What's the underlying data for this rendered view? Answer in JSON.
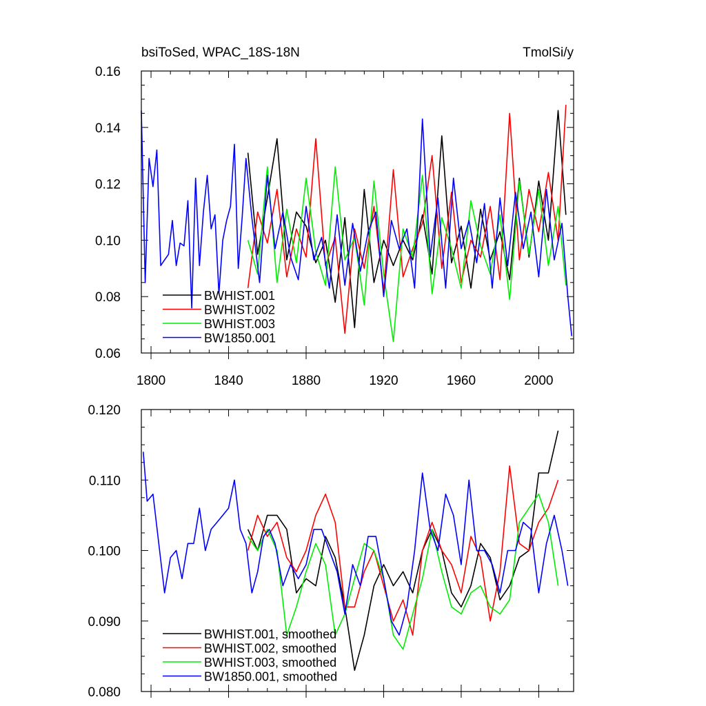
{
  "chart_data": [
    {
      "type": "line",
      "title": "bsiToSed, WPAC_18S-18N",
      "units_label": "TmolSi/y",
      "xlim": [
        1795,
        2018
      ],
      "ylim": [
        0.06,
        0.16
      ],
      "yticks": [
        "0.06",
        "0.08",
        "0.10",
        "0.12",
        "0.14",
        "0.16"
      ],
      "xticks": [
        "1800",
        "1840",
        "1880",
        "1920",
        "1960",
        "2000"
      ],
      "legend_position": "bottom-left",
      "series": [
        {
          "name": "BWHIST.001",
          "color": "#000000",
          "x": [
            1850,
            1855,
            1860,
            1865,
            1870,
            1875,
            1880,
            1885,
            1890,
            1895,
            1900,
            1905,
            1910,
            1915,
            1920,
            1925,
            1930,
            1935,
            1940,
            1945,
            1950,
            1955,
            1960,
            1965,
            1970,
            1975,
            1980,
            1985,
            1990,
            1995,
            2000,
            2005,
            2010,
            2014
          ],
          "values": [
            0.131,
            0.095,
            0.115,
            0.136,
            0.093,
            0.11,
            0.105,
            0.092,
            0.1,
            0.078,
            0.108,
            0.069,
            0.118,
            0.085,
            0.1,
            0.091,
            0.1,
            0.093,
            0.109,
            0.088,
            0.137,
            0.092,
            0.105,
            0.083,
            0.111,
            0.093,
            0.103,
            0.086,
            0.122,
            0.094,
            0.121,
            0.1,
            0.146,
            0.109
          ]
        },
        {
          "name": "BWHIST.002",
          "color": "#ff0000",
          "x": [
            1850,
            1855,
            1860,
            1865,
            1870,
            1875,
            1880,
            1885,
            1890,
            1895,
            1900,
            1905,
            1910,
            1915,
            1920,
            1925,
            1930,
            1935,
            1940,
            1945,
            1950,
            1955,
            1960,
            1965,
            1970,
            1975,
            1980,
            1985,
            1990,
            1995,
            2000,
            2005,
            2010,
            2014
          ],
          "values": [
            0.083,
            0.11,
            0.099,
            0.118,
            0.087,
            0.104,
            0.094,
            0.136,
            0.091,
            0.101,
            0.067,
            0.104,
            0.09,
            0.112,
            0.082,
            0.125,
            0.087,
            0.097,
            0.106,
            0.13,
            0.09,
            0.117,
            0.085,
            0.1,
            0.094,
            0.112,
            0.086,
            0.145,
            0.093,
            0.118,
            0.103,
            0.124,
            0.1,
            0.148
          ]
        },
        {
          "name": "BWHIST.003",
          "color": "#00ee00",
          "x": [
            1850,
            1855,
            1860,
            1865,
            1870,
            1875,
            1880,
            1885,
            1890,
            1895,
            1900,
            1905,
            1910,
            1915,
            1920,
            1925,
            1930,
            1935,
            1940,
            1945,
            1950,
            1955,
            1960,
            1965,
            1970,
            1975,
            1980,
            1985,
            1990,
            1995,
            2000,
            2005,
            2010,
            2014
          ],
          "values": [
            0.1,
            0.088,
            0.126,
            0.085,
            0.111,
            0.092,
            0.122,
            0.096,
            0.084,
            0.126,
            0.093,
            0.101,
            0.077,
            0.121,
            0.088,
            0.064,
            0.104,
            0.094,
            0.123,
            0.081,
            0.108,
            0.097,
            0.083,
            0.114,
            0.098,
            0.088,
            0.109,
            0.079,
            0.121,
            0.095,
            0.118,
            0.091,
            0.112,
            0.084
          ]
        },
        {
          "name": "BW1850.001",
          "color": "#0000ff",
          "x": [
            1795,
            1797,
            1799,
            1801,
            1803,
            1805,
            1807,
            1809,
            1811,
            1813,
            1815,
            1817,
            1819,
            1821,
            1823,
            1825,
            1827,
            1829,
            1831,
            1833,
            1835,
            1837,
            1839,
            1841,
            1843,
            1845,
            1847,
            1849,
            1852,
            1856,
            1860,
            1864,
            1868,
            1872,
            1876,
            1880,
            1884,
            1888,
            1892,
            1896,
            1900,
            1904,
            1908,
            1912,
            1916,
            1920,
            1924,
            1928,
            1932,
            1936,
            1940,
            1944,
            1948,
            1952,
            1956,
            1960,
            1964,
            1968,
            1972,
            1976,
            1980,
            1984,
            1988,
            1992,
            1996,
            2000,
            2004,
            2008,
            2012,
            2015,
            2017
          ],
          "values": [
            0.146,
            0.085,
            0.129,
            0.119,
            0.132,
            0.091,
            0.093,
            0.095,
            0.107,
            0.091,
            0.099,
            0.098,
            0.114,
            0.076,
            0.122,
            0.091,
            0.11,
            0.123,
            0.104,
            0.109,
            0.081,
            0.1,
            0.107,
            0.112,
            0.134,
            0.09,
            0.108,
            0.129,
            0.108,
            0.085,
            0.123,
            0.097,
            0.11,
            0.094,
            0.086,
            0.112,
            0.093,
            0.101,
            0.083,
            0.109,
            0.084,
            0.106,
            0.089,
            0.103,
            0.11,
            0.08,
            0.107,
            0.097,
            0.104,
            0.083,
            0.143,
            0.094,
            0.115,
            0.083,
            0.122,
            0.097,
            0.107,
            0.092,
            0.113,
            0.083,
            0.115,
            0.091,
            0.117,
            0.097,
            0.11,
            0.087,
            0.118,
            0.093,
            0.106,
            0.08,
            0.066
          ]
        }
      ]
    },
    {
      "type": "line",
      "xlim": [
        1795,
        2018
      ],
      "ylim": [
        0.08,
        0.12
      ],
      "yticks": [
        "0.080",
        "0.090",
        "0.100",
        "0.110",
        "0.120"
      ],
      "legend_position": "bottom-left",
      "series": [
        {
          "name": "BWHIST.001, smoothed",
          "color": "#000000",
          "x": [
            1850,
            1855,
            1860,
            1865,
            1870,
            1875,
            1880,
            1885,
            1890,
            1895,
            1900,
            1905,
            1910,
            1915,
            1920,
            1925,
            1930,
            1935,
            1940,
            1945,
            1950,
            1955,
            1960,
            1965,
            1970,
            1975,
            1980,
            1985,
            1990,
            1995,
            2000,
            2005,
            2010
          ],
          "values": [
            0.103,
            0.1,
            0.105,
            0.105,
            0.103,
            0.094,
            0.096,
            0.095,
            0.102,
            0.099,
            0.092,
            0.083,
            0.088,
            0.095,
            0.098,
            0.095,
            0.097,
            0.094,
            0.1,
            0.103,
            0.1,
            0.094,
            0.092,
            0.095,
            0.101,
            0.099,
            0.093,
            0.095,
            0.099,
            0.1,
            0.111,
            0.111,
            0.117
          ]
        },
        {
          "name": "BWHIST.002, smoothed",
          "color": "#ff0000",
          "x": [
            1850,
            1855,
            1860,
            1865,
            1870,
            1875,
            1880,
            1885,
            1890,
            1895,
            1900,
            1905,
            1910,
            1915,
            1920,
            1925,
            1930,
            1935,
            1940,
            1945,
            1950,
            1955,
            1960,
            1965,
            1970,
            1975,
            1980,
            1985,
            1990,
            1995,
            2000,
            2005,
            2010
          ],
          "values": [
            0.1,
            0.105,
            0.102,
            0.104,
            0.099,
            0.097,
            0.1,
            0.105,
            0.108,
            0.104,
            0.092,
            0.092,
            0.097,
            0.1,
            0.095,
            0.09,
            0.093,
            0.088,
            0.1,
            0.104,
            0.1,
            0.098,
            0.094,
            0.102,
            0.099,
            0.09,
            0.097,
            0.112,
            0.101,
            0.1,
            0.104,
            0.106,
            0.11
          ]
        },
        {
          "name": "BWHIST.003, smoothed",
          "color": "#00ee00",
          "x": [
            1850,
            1855,
            1860,
            1865,
            1870,
            1875,
            1880,
            1885,
            1890,
            1895,
            1900,
            1905,
            1910,
            1915,
            1920,
            1925,
            1930,
            1935,
            1940,
            1945,
            1950,
            1955,
            1960,
            1965,
            1970,
            1975,
            1980,
            1985,
            1990,
            1995,
            2000,
            2005,
            2010
          ],
          "values": [
            0.102,
            0.1,
            0.103,
            0.1,
            0.088,
            0.092,
            0.097,
            0.101,
            0.098,
            0.088,
            0.091,
            0.096,
            0.101,
            0.1,
            0.096,
            0.088,
            0.086,
            0.091,
            0.096,
            0.103,
            0.097,
            0.092,
            0.091,
            0.094,
            0.095,
            0.092,
            0.091,
            0.093,
            0.104,
            0.106,
            0.108,
            0.104,
            0.095
          ]
        },
        {
          "name": "BW1850.001, smoothed",
          "color": "#0000ff",
          "x": [
            1796,
            1798,
            1801,
            1804,
            1807,
            1810,
            1813,
            1816,
            1819,
            1822,
            1825,
            1828,
            1831,
            1834,
            1837,
            1840,
            1843,
            1846,
            1849,
            1852,
            1855,
            1858,
            1861,
            1864,
            1868,
            1872,
            1876,
            1880,
            1884,
            1888,
            1892,
            1896,
            1900,
            1904,
            1908,
            1912,
            1916,
            1920,
            1924,
            1928,
            1932,
            1936,
            1940,
            1944,
            1948,
            1952,
            1956,
            1960,
            1964,
            1968,
            1972,
            1976,
            1980,
            1984,
            1988,
            1992,
            1996,
            2000,
            2004,
            2008,
            2012,
            2015
          ],
          "values": [
            0.114,
            0.107,
            0.108,
            0.101,
            0.094,
            0.099,
            0.1,
            0.096,
            0.101,
            0.101,
            0.106,
            0.1,
            0.103,
            0.104,
            0.105,
            0.106,
            0.11,
            0.103,
            0.101,
            0.094,
            0.097,
            0.102,
            0.103,
            0.101,
            0.095,
            0.098,
            0.096,
            0.098,
            0.103,
            0.103,
            0.1,
            0.097,
            0.091,
            0.098,
            0.095,
            0.102,
            0.102,
            0.096,
            0.09,
            0.088,
            0.092,
            0.1,
            0.111,
            0.103,
            0.1,
            0.108,
            0.105,
            0.098,
            0.11,
            0.1,
            0.1,
            0.098,
            0.094,
            0.1,
            0.1,
            0.104,
            0.103,
            0.094,
            0.101,
            0.105,
            0.1,
            0.095
          ]
        }
      ]
    }
  ]
}
